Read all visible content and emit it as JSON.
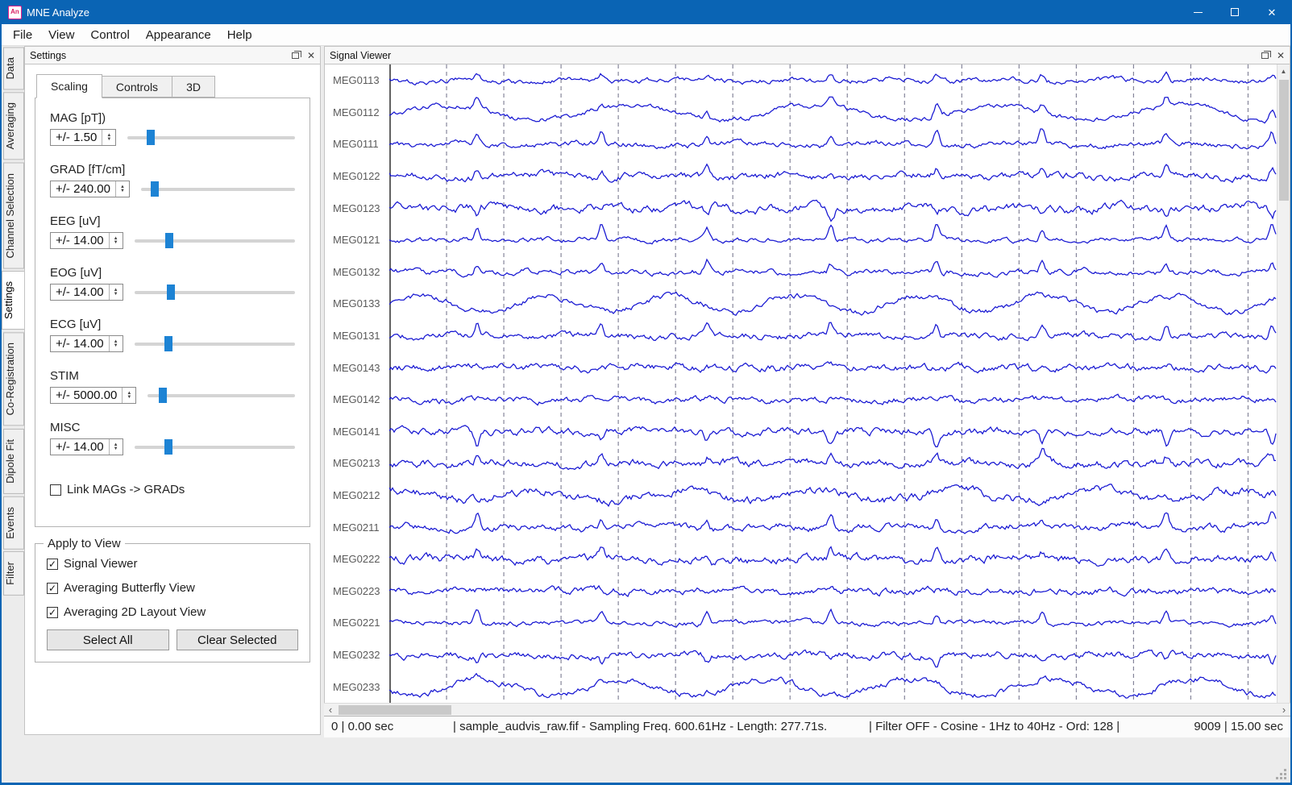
{
  "window": {
    "title": "MNE Analyze"
  },
  "menu": {
    "items": [
      "File",
      "View",
      "Control",
      "Appearance",
      "Help"
    ]
  },
  "left_tabs": {
    "items": [
      "Data",
      "Averaging",
      "Channel Selection",
      "Settings",
      "Co-Registration",
      "Dipole Fit",
      "Events",
      "Filter"
    ],
    "selected": "Settings"
  },
  "settings_panel": {
    "title": "Settings",
    "tabs": [
      "Scaling",
      "Controls",
      "3D"
    ],
    "selected_tab": "Scaling",
    "scalers": [
      {
        "label": "MAG [pT])",
        "value": "+/- 1.50",
        "slider_percent": 14
      },
      {
        "label": "GRAD [fT/cm]",
        "value": "+/- 240.00",
        "slider_percent": 9
      },
      {
        "label": "EEG [uV]",
        "value": "+/- 14.00",
        "slider_percent": 22
      },
      {
        "label": "EOG [uV]",
        "value": "+/- 14.00",
        "slider_percent": 23
      },
      {
        "label": "ECG [uV]",
        "value": "+/- 14.00",
        "slider_percent": 21
      },
      {
        "label": "STIM",
        "value": "+/- 5000.00",
        "slider_percent": 10
      },
      {
        "label": "MISC",
        "value": "+/- 14.00",
        "slider_percent": 21
      }
    ],
    "link_checkbox": {
      "label": "Link MAGs -> GRADs",
      "checked": false
    },
    "apply_group": {
      "title": "Apply to View",
      "checkboxes": [
        {
          "label": "Signal Viewer",
          "checked": true
        },
        {
          "label": "Averaging Butterfly View",
          "checked": true
        },
        {
          "label": "Averaging 2D Layout View",
          "checked": true
        }
      ],
      "buttons": [
        "Select All",
        "Clear Selected"
      ]
    }
  },
  "signal_viewer": {
    "title": "Signal Viewer",
    "channels": [
      "MEG0113",
      "MEG0112",
      "MEG0111",
      "MEG0122",
      "MEG0123",
      "MEG0121",
      "MEG0132",
      "MEG0133",
      "MEG0131",
      "MEG0143",
      "MEG0142",
      "MEG0141",
      "MEG0213",
      "MEG0212",
      "MEG0211",
      "MEG0222",
      "MEG0223",
      "MEG0221",
      "MEG0232",
      "MEG0233"
    ],
    "window_seconds": 15,
    "status_segments": [
      "0 | 0.00 sec",
      "|   sample_audvis_raw.fif  -  Sampling Freq. 600.61Hz  -  Length: 277.71s.",
      "|   Filter OFF  -  Cosine  -  1Hz to 40Hz  -  Ord: 128  |",
      "9009 | 15.00 sec"
    ]
  },
  "icons": {
    "app_icon_text": "An",
    "spin_up": "▲",
    "spin_down": "▼",
    "scroll_up": "▲",
    "scroll_down": "▼",
    "scroll_left": "‹",
    "scroll_right": "›",
    "close": "✕",
    "check": "✓"
  },
  "colors": {
    "titlebar": "#0a64b4",
    "accent_border": "#0a64b4",
    "slider_handle": "#1d83d4",
    "trace": "#1717d2",
    "gridline": "#85859a"
  }
}
